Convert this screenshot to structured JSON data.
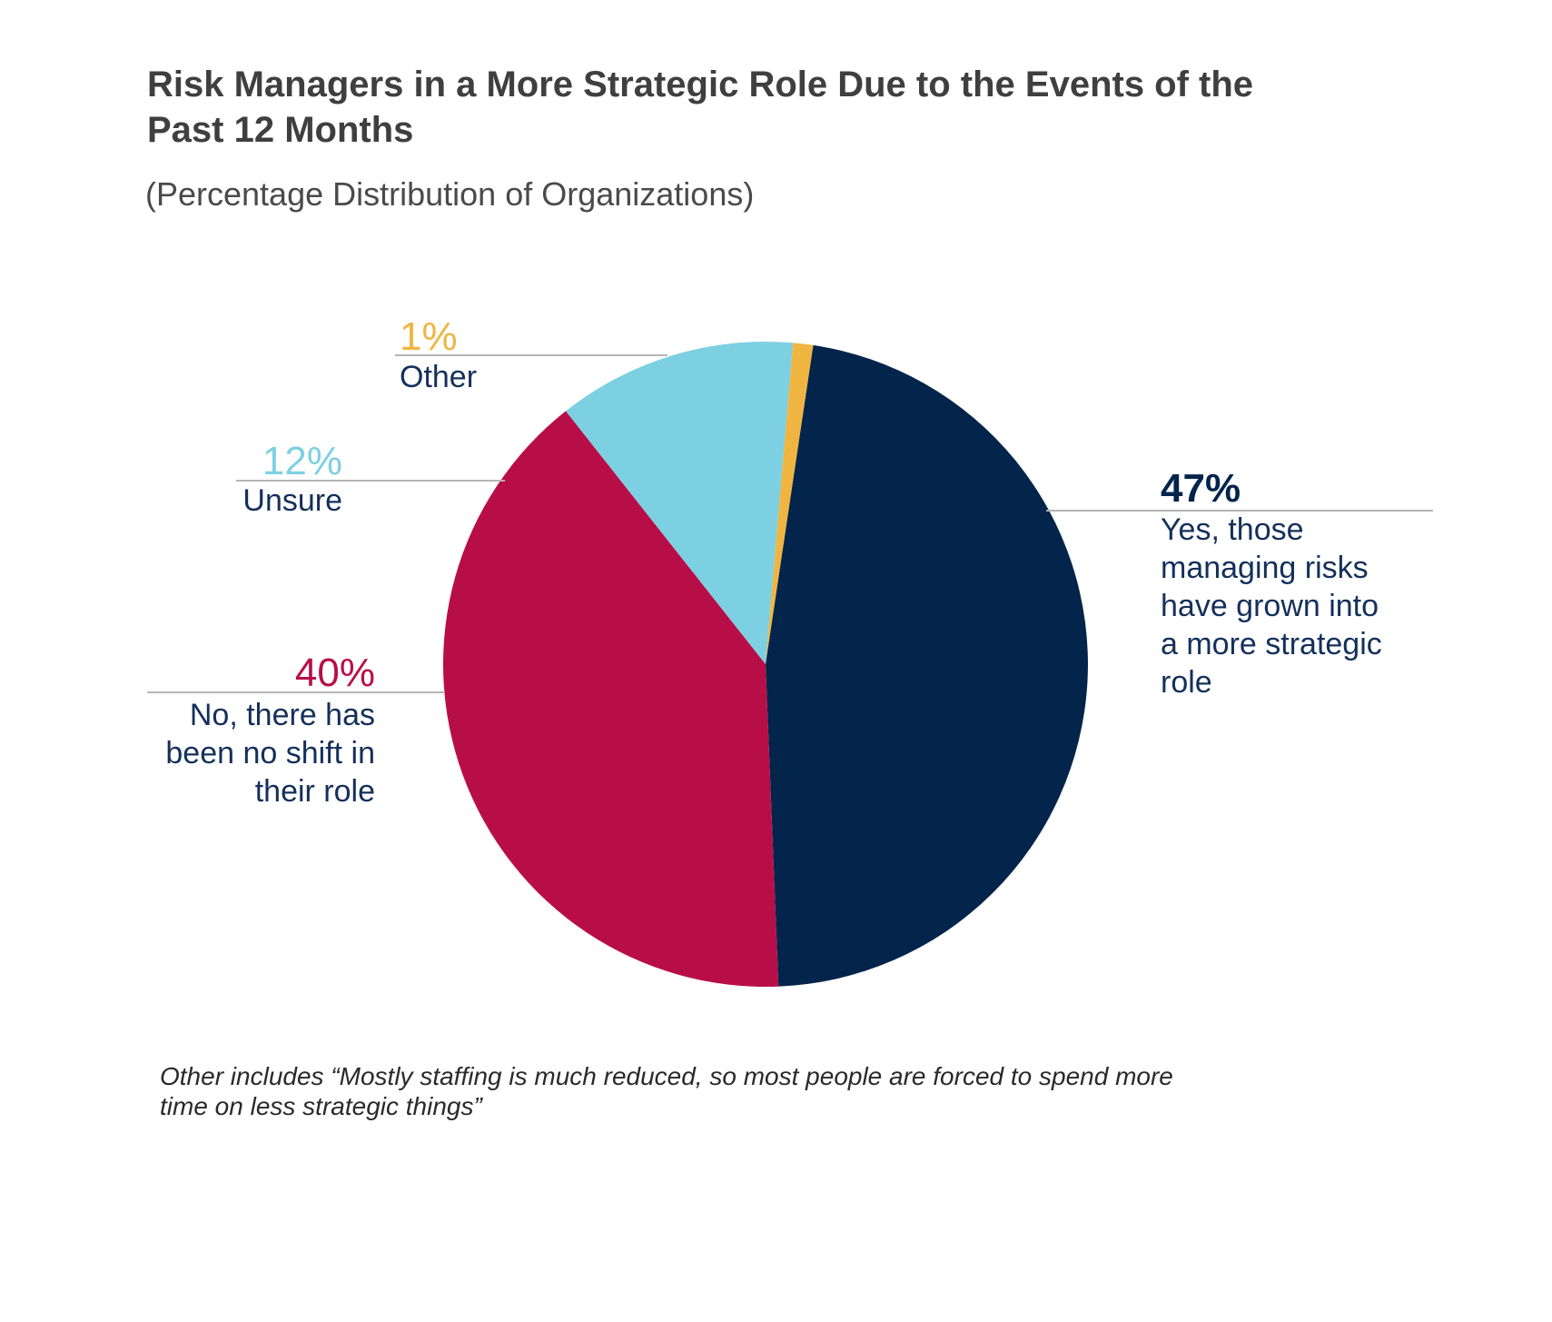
{
  "chart_data": {
    "type": "pie",
    "title_lines": [
      "Risk Managers in a More Strategic Role Due to the Events of the",
      "Past 12 Months"
    ],
    "subtitle": "(Percentage Distribution of Organizations)",
    "slices": [
      {
        "value": 47,
        "pct_label": "47%",
        "label_lines": [
          "Yes, those",
          "managing risks",
          "have grown into",
          "a more strategic",
          "role"
        ],
        "color": "#03244b"
      },
      {
        "value": 40,
        "pct_label": "40%",
        "label_lines": [
          "No, there has",
          "been no shift in",
          "their role"
        ],
        "color": "#b80e48"
      },
      {
        "value": 12,
        "pct_label": "12%",
        "label_lines": [
          "Unsure"
        ],
        "color": "#7dd0e2"
      },
      {
        "value": 1,
        "pct_label": "1%",
        "label_lines": [
          "Other"
        ],
        "color": "#f0b541"
      }
    ],
    "note_lines": [
      "Other includes “Mostly staffing is much reduced, so most people are forced to spend more",
      "time on less strategic things”"
    ]
  }
}
